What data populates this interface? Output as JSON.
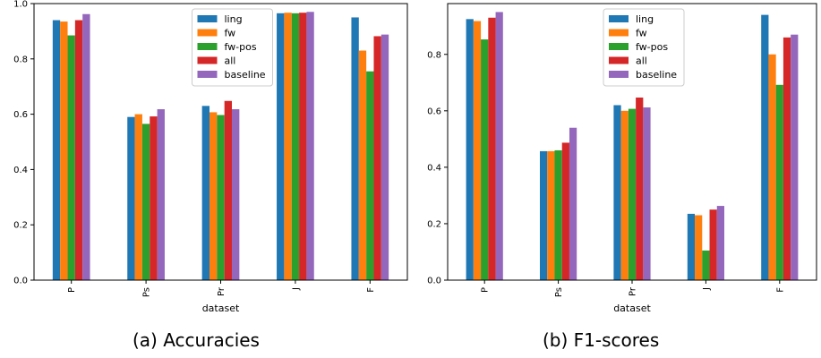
{
  "captions": {
    "left": "(a) Accuracies",
    "right": "(b) F1-scores"
  },
  "chart_data": [
    {
      "type": "bar",
      "categories": [
        "P",
        "Ps",
        "Pr",
        "J",
        "F"
      ],
      "xlabel": "dataset",
      "ylabel": "",
      "ylim": [
        0,
        1.0
      ],
      "yticks": [
        "0.0",
        "0.2",
        "0.4",
        "0.6",
        "0.8",
        "1.0"
      ],
      "legend_position": "top-center",
      "series": [
        {
          "name": "ling",
          "color": "#1f77b4",
          "values": [
            0.94,
            0.59,
            0.63,
            0.965,
            0.95
          ]
        },
        {
          "name": "fw",
          "color": "#ff7f0e",
          "values": [
            0.935,
            0.6,
            0.607,
            0.967,
            0.83
          ]
        },
        {
          "name": "fw-pos",
          "color": "#2ca02c",
          "values": [
            0.885,
            0.565,
            0.597,
            0.965,
            0.755
          ]
        },
        {
          "name": "all",
          "color": "#d62728",
          "values": [
            0.94,
            0.592,
            0.648,
            0.967,
            0.882
          ]
        },
        {
          "name": "baseline",
          "color": "#9467bd",
          "values": [
            0.962,
            0.618,
            0.618,
            0.97,
            0.888
          ]
        }
      ]
    },
    {
      "type": "bar",
      "categories": [
        "P",
        "Ps",
        "Pr",
        "J",
        "F"
      ],
      "xlabel": "dataset",
      "ylabel": "",
      "ylim": [
        0,
        0.98
      ],
      "yticks": [
        "0.0",
        "0.2",
        "0.4",
        "0.6",
        "0.8"
      ],
      "legend_position": "top-center",
      "series": [
        {
          "name": "ling",
          "color": "#1f77b4",
          "values": [
            0.925,
            0.457,
            0.62,
            0.235,
            0.94
          ]
        },
        {
          "name": "fw",
          "color": "#ff7f0e",
          "values": [
            0.918,
            0.457,
            0.6,
            0.23,
            0.8
          ]
        },
        {
          "name": "fw-pos",
          "color": "#2ca02c",
          "values": [
            0.853,
            0.46,
            0.607,
            0.105,
            0.692
          ]
        },
        {
          "name": "all",
          "color": "#d62728",
          "values": [
            0.93,
            0.487,
            0.647,
            0.25,
            0.86
          ]
        },
        {
          "name": "baseline",
          "color": "#9467bd",
          "values": [
            0.95,
            0.54,
            0.612,
            0.263,
            0.87
          ]
        }
      ]
    }
  ]
}
